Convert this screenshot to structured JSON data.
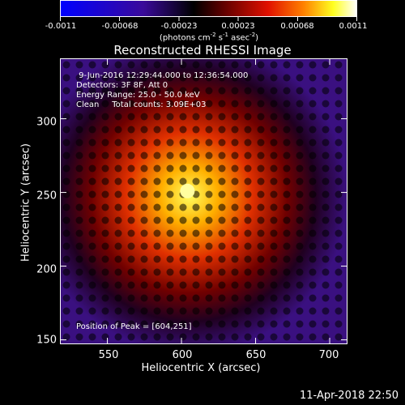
{
  "colorbar": {
    "ticks": [
      "-0.0011",
      "-0.00068",
      "-0.00023",
      "0.00023",
      "0.00068",
      "0.0011"
    ],
    "units_text": "(photons cm",
    "units_exp1": "-2",
    "units_mid": " s",
    "units_exp2": "-1",
    "units_tail": " asec",
    "units_exp3": "-2",
    "units_close": ")",
    "colors": [
      "#0000ff",
      "#400080",
      "#000000",
      "#800000",
      "#ff4000",
      "#ffff00",
      "#ffffff"
    ]
  },
  "annotations": {
    "time_range": " 9-Jun-2016 12:29:44.000 to 12:36:54.000",
    "detectors": "Detectors: 3F 8F, Att 0",
    "energy": "Energy Range: 25.0 - 50.0 keV",
    "clean": "Clean     Total counts: 3.09E+03",
    "peak": "Position of Peak = [604,251]"
  },
  "footer": "11-Apr-2018 22:50",
  "chart_data": {
    "type": "heatmap",
    "title": "Reconstructed RHESSI Image",
    "xlabel": "Heliocentric X (arcsec)",
    "ylabel": "Heliocentric Y (arcsec)",
    "xlim": [
      518,
      712
    ],
    "ylim": [
      147,
      341
    ],
    "xticks": [
      550,
      600,
      650,
      700
    ],
    "yticks": [
      150,
      200,
      250,
      300
    ],
    "peak": [
      604,
      251
    ],
    "value_range": [
      -0.0011,
      0.0011
    ]
  }
}
